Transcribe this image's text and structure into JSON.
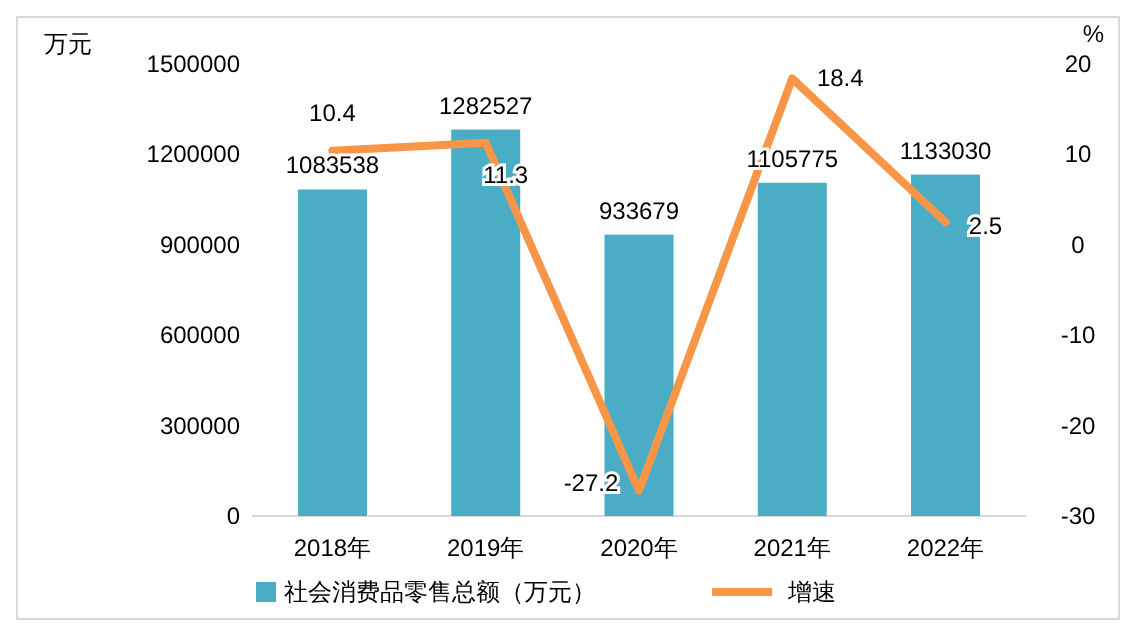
{
  "chart_data": {
    "type": "bar",
    "categories": [
      "2018年",
      "2019年",
      "2020年",
      "2021年",
      "2022年"
    ],
    "ylabel": "万元",
    "y2label": "%",
    "series": [
      {
        "name": "社会消费品零售总额（万元）",
        "color": "#4bacc6",
        "values": [
          1083538,
          1282527,
          933679,
          1105775,
          1133030
        ]
      },
      {
        "name": "增速",
        "type": "line",
        "axis": "y2",
        "color": "#f79646",
        "values": [
          10.4,
          11.3,
          -27.2,
          18.4,
          2.5
        ]
      }
    ],
    "ylim": [
      0,
      1500000
    ],
    "yticks": [
      0,
      300000,
      600000,
      900000,
      1200000,
      1500000
    ],
    "y2lim": [
      -30,
      20
    ],
    "y2ticks": [
      -30,
      -20,
      -10,
      0,
      10,
      20
    ],
    "data_labels": true,
    "legend": "bottom",
    "grid": false,
    "marker": "none",
    "line_style": "solid"
  }
}
